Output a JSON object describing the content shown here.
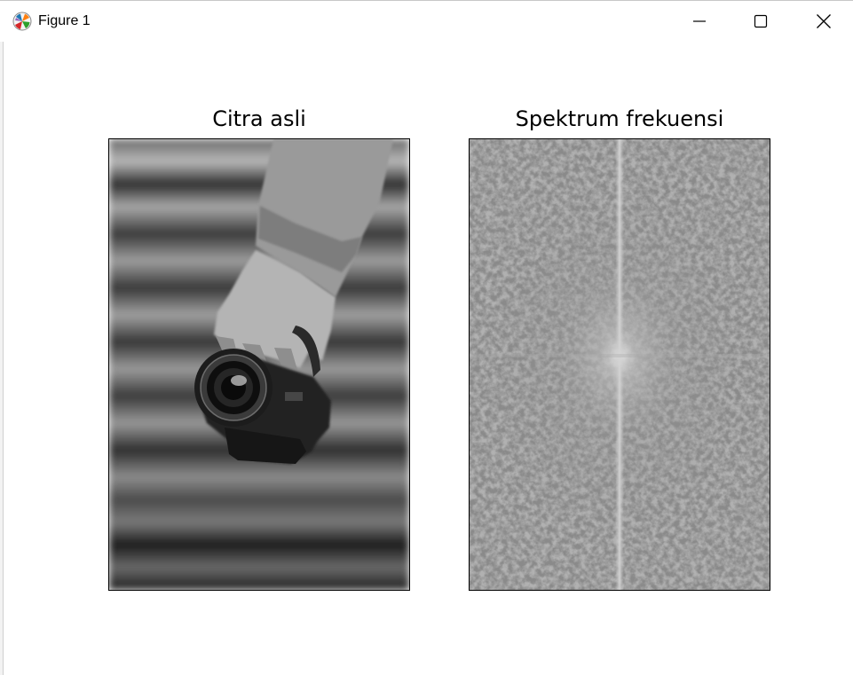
{
  "window": {
    "title": "Figure 1",
    "controls": [
      "minimize",
      "maximize",
      "close"
    ]
  },
  "figure": {
    "subplots": [
      {
        "title": "Citra asli",
        "content": "grayscale photo of a hand holding a camera"
      },
      {
        "title": "Spektrum frekuensi",
        "content": "magnitude spectrum"
      }
    ]
  }
}
